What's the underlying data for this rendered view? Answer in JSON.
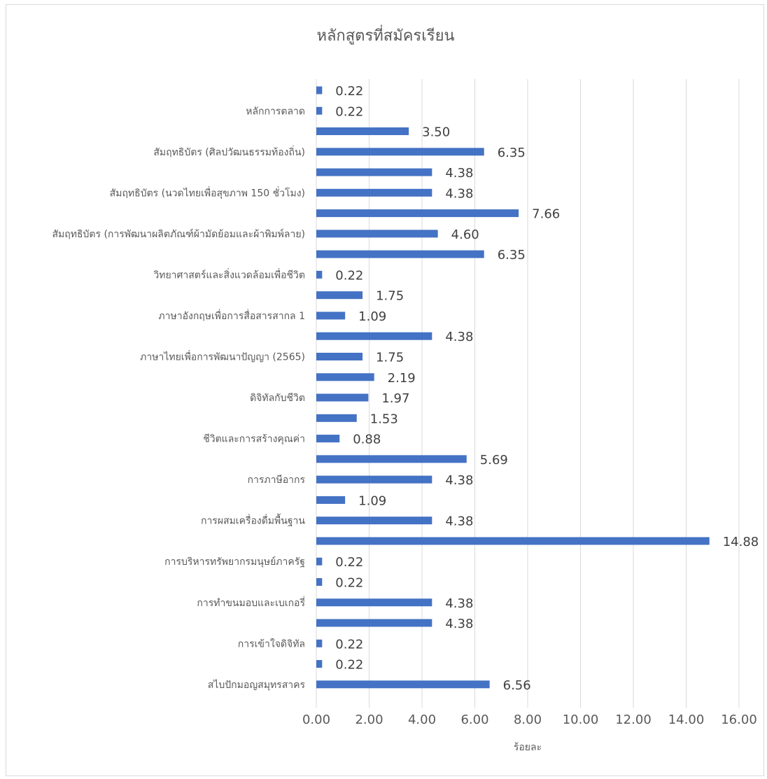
{
  "chart_data": {
    "type": "bar",
    "orientation": "horizontal",
    "title": "หลักสูตรที่สมัครเรียน",
    "xlabel": "ร้อยละ",
    "ylabel": "",
    "xlim": [
      0,
      16
    ],
    "xticks": [
      "0.00",
      "2.00",
      "4.00",
      "6.00",
      "8.00",
      "10.00",
      "12.00",
      "14.00",
      "16.00"
    ],
    "grid": true,
    "legend": "none",
    "bar_color": "#4472c4",
    "bars": [
      {
        "label": "",
        "value": 0.22,
        "value_label": "0.22"
      },
      {
        "label": "หลักการตลาด",
        "value": 0.22,
        "value_label": "0.22"
      },
      {
        "label": "",
        "value": 3.5,
        "value_label": "3.50"
      },
      {
        "label": "สัมฤทธิบัตร (ศิลปวัฒนธรรมท้องถิ่น)",
        "value": 6.35,
        "value_label": "6.35"
      },
      {
        "label": "",
        "value": 4.38,
        "value_label": "4.38"
      },
      {
        "label": "สัมฤทธิบัตร (นวดไทยเพื่อสุขภาพ 150 ชั่วโมง)",
        "value": 4.38,
        "value_label": "4.38"
      },
      {
        "label": "",
        "value": 7.66,
        "value_label": "7.66"
      },
      {
        "label": "สัมฤทธิบัตร (การพัฒนาผลิตภัณฑ์ผ้ามัดย้อมและผ้าพิมพ์ลาย)",
        "value": 4.6,
        "value_label": "4.60"
      },
      {
        "label": "",
        "value": 6.35,
        "value_label": "6.35"
      },
      {
        "label": "วิทยาศาสตร์และสิ่งแวดล้อมเพื่อชีวิต",
        "value": 0.22,
        "value_label": "0.22"
      },
      {
        "label": "",
        "value": 1.75,
        "value_label": "1.75"
      },
      {
        "label": "ภาษาอังกฤษเพื่อการสื่อสารสากล 1",
        "value": 1.09,
        "value_label": "1.09"
      },
      {
        "label": "",
        "value": 4.38,
        "value_label": "4.38"
      },
      {
        "label": "ภาษาไทยเพื่อการพัฒนาปัญญา (2565)",
        "value": 1.75,
        "value_label": "1.75"
      },
      {
        "label": "",
        "value": 2.19,
        "value_label": "2.19"
      },
      {
        "label": "ดิจิทัลกับชีวิต",
        "value": 1.97,
        "value_label": "1.97"
      },
      {
        "label": "",
        "value": 1.53,
        "value_label": "1.53"
      },
      {
        "label": "ชีวิตและการสร้างคุณค่า",
        "value": 0.88,
        "value_label": "0.88"
      },
      {
        "label": "",
        "value": 5.69,
        "value_label": "5.69"
      },
      {
        "label": "การภาษีอากร",
        "value": 4.38,
        "value_label": "4.38"
      },
      {
        "label": "",
        "value": 1.09,
        "value_label": "1.09"
      },
      {
        "label": "การผสมเครื่องดื่มพื้นฐาน",
        "value": 4.38,
        "value_label": "4.38"
      },
      {
        "label": "",
        "value": 14.88,
        "value_label": "14.88"
      },
      {
        "label": "การบริหารทรัพยากรมนุษย์ภาครัฐ",
        "value": 0.22,
        "value_label": "0.22"
      },
      {
        "label": "",
        "value": 0.22,
        "value_label": "0.22"
      },
      {
        "label": "การทำขนมอบและเบเกอรี่",
        "value": 4.38,
        "value_label": "4.38"
      },
      {
        "label": "",
        "value": 4.38,
        "value_label": "4.38"
      },
      {
        "label": "การเข้าใจดิจิทัล",
        "value": 0.22,
        "value_label": "0.22"
      },
      {
        "label": "",
        "value": 0.22,
        "value_label": "0.22"
      },
      {
        "label": "สไบปักมอญสมุทรสาคร",
        "value": 6.56,
        "value_label": "6.56"
      }
    ]
  }
}
